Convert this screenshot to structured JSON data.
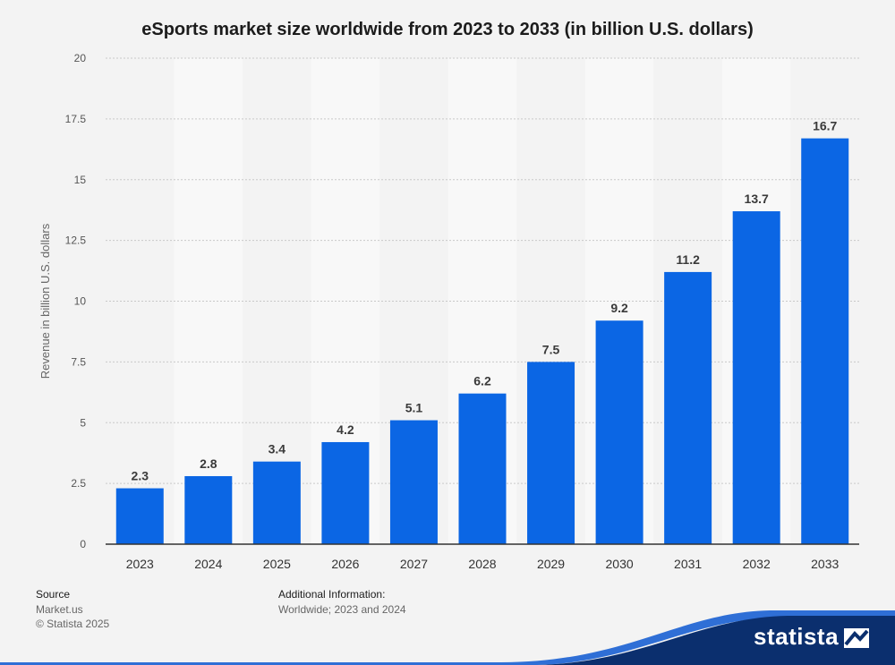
{
  "chart_data": {
    "type": "bar",
    "title": "eSports market size worldwide from 2023 to 2033 (in billion U.S. dollars)",
    "ylabel": "Revenue in billion U.S. dollars",
    "xlabel": "",
    "categories": [
      "2023",
      "2024",
      "2025",
      "2026",
      "2027",
      "2028",
      "2029",
      "2030",
      "2031",
      "2032",
      "2033"
    ],
    "values": [
      2.3,
      2.8,
      3.4,
      4.2,
      5.1,
      6.2,
      7.5,
      9.2,
      11.2,
      13.7,
      16.7
    ],
    "value_labels": [
      "2.3",
      "2.8",
      "3.4",
      "4.2",
      "5.1",
      "6.2",
      "7.5",
      "9.2",
      "11.2",
      "13.7",
      "16.7"
    ],
    "ylim": [
      0,
      20
    ],
    "yticks": [
      0,
      2.5,
      5,
      7.5,
      10,
      12.5,
      15,
      17.5,
      20
    ],
    "ytick_labels": [
      "0",
      "2.5",
      "5",
      "7.5",
      "10",
      "12.5",
      "15",
      "17.5",
      "20"
    ],
    "grid": true,
    "bar_color": "#0b66e4"
  },
  "footer": {
    "source_heading": "Source",
    "source_name": "Market.us",
    "copyright": "© Statista 2025",
    "info_heading": "Additional Information:",
    "info_text": "Worldwide; 2023 and 2024"
  },
  "brand": {
    "logo_text": "statista",
    "wave_color": "#0b2f6e",
    "accent_color": "#2f6fd6"
  }
}
